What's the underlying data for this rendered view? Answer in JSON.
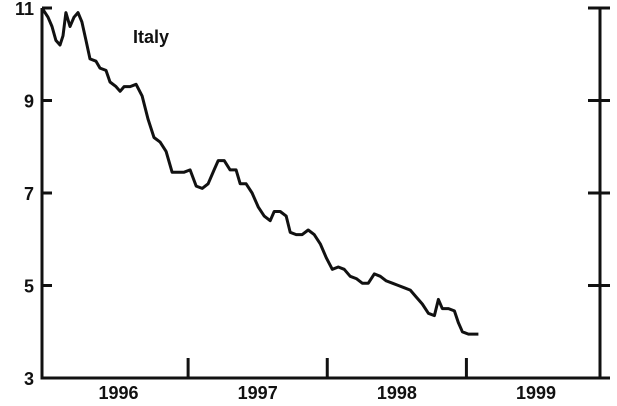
{
  "chart_data": {
    "type": "line",
    "annotation": "Italy",
    "series": [
      {
        "name": "Italy",
        "color": "#111111",
        "x": [
          1995.95,
          1995.993,
          1996.022,
          1996.05,
          1996.079,
          1996.101,
          1996.122,
          1996.151,
          1996.18,
          1996.209,
          1996.237,
          1996.266,
          1996.295,
          1996.338,
          1996.367,
          1996.41,
          1996.439,
          1996.482,
          1996.511,
          1996.54,
          1996.583,
          1996.626,
          1996.669,
          1996.712,
          1996.755,
          1996.799,
          1996.842,
          1996.885,
          1996.928,
          1996.971,
          1997.014,
          1997.058,
          1997.101,
          1997.144,
          1997.187,
          1997.216,
          1997.259,
          1997.302,
          1997.345,
          1997.374,
          1997.417,
          1997.46,
          1997.504,
          1997.547,
          1997.59,
          1997.619,
          1997.662,
          1997.705,
          1997.734,
          1997.777,
          1997.82,
          1997.863,
          1997.906,
          1997.95,
          1997.993,
          1998.036,
          1998.079,
          1998.122,
          1998.165,
          1998.209,
          1998.252,
          1998.295,
          1998.338,
          1998.381,
          1998.424,
          1998.468,
          1998.511,
          1998.554,
          1998.597,
          1998.64,
          1998.683,
          1998.727,
          1998.77,
          1998.799,
          1998.827,
          1998.871,
          1998.914,
          1998.942,
          1998.971,
          1999.014,
          1999.058,
          1999.086
        ],
        "values": [
          11.0,
          10.8,
          10.6,
          10.3,
          10.2,
          10.4,
          10.9,
          10.6,
          10.8,
          10.9,
          10.7,
          10.3,
          9.9,
          9.85,
          9.7,
          9.65,
          9.4,
          9.3,
          9.2,
          9.3,
          9.3,
          9.35,
          9.1,
          8.6,
          8.2,
          8.1,
          7.9,
          7.45,
          7.45,
          7.45,
          7.5,
          7.15,
          7.1,
          7.2,
          7.5,
          7.7,
          7.7,
          7.5,
          7.5,
          7.2,
          7.2,
          7.0,
          6.7,
          6.5,
          6.4,
          6.6,
          6.6,
          6.5,
          6.15,
          6.1,
          6.1,
          6.2,
          6.1,
          5.9,
          5.6,
          5.35,
          5.4,
          5.35,
          5.2,
          5.15,
          5.05,
          5.05,
          5.25,
          5.2,
          5.1,
          5.05,
          5.0,
          4.95,
          4.9,
          4.75,
          4.6,
          4.4,
          4.35,
          4.7,
          4.5,
          4.5,
          4.45,
          4.2,
          4.0,
          3.95,
          3.95,
          3.95
        ]
      }
    ],
    "xlim": [
      1995.95,
      1999.96
    ],
    "xticks": [
      {
        "value": 1996.5,
        "label": "1996"
      },
      {
        "value": 1997.5,
        "label": "1997"
      },
      {
        "value": 1998.5,
        "label": "1998"
      },
      {
        "value": 1999.5,
        "label": "1999"
      }
    ],
    "x_boundaries": [
      1997,
      1998,
      1999
    ],
    "ylim": [
      3,
      11
    ],
    "yticks": [
      3,
      5,
      7,
      9,
      11
    ]
  }
}
